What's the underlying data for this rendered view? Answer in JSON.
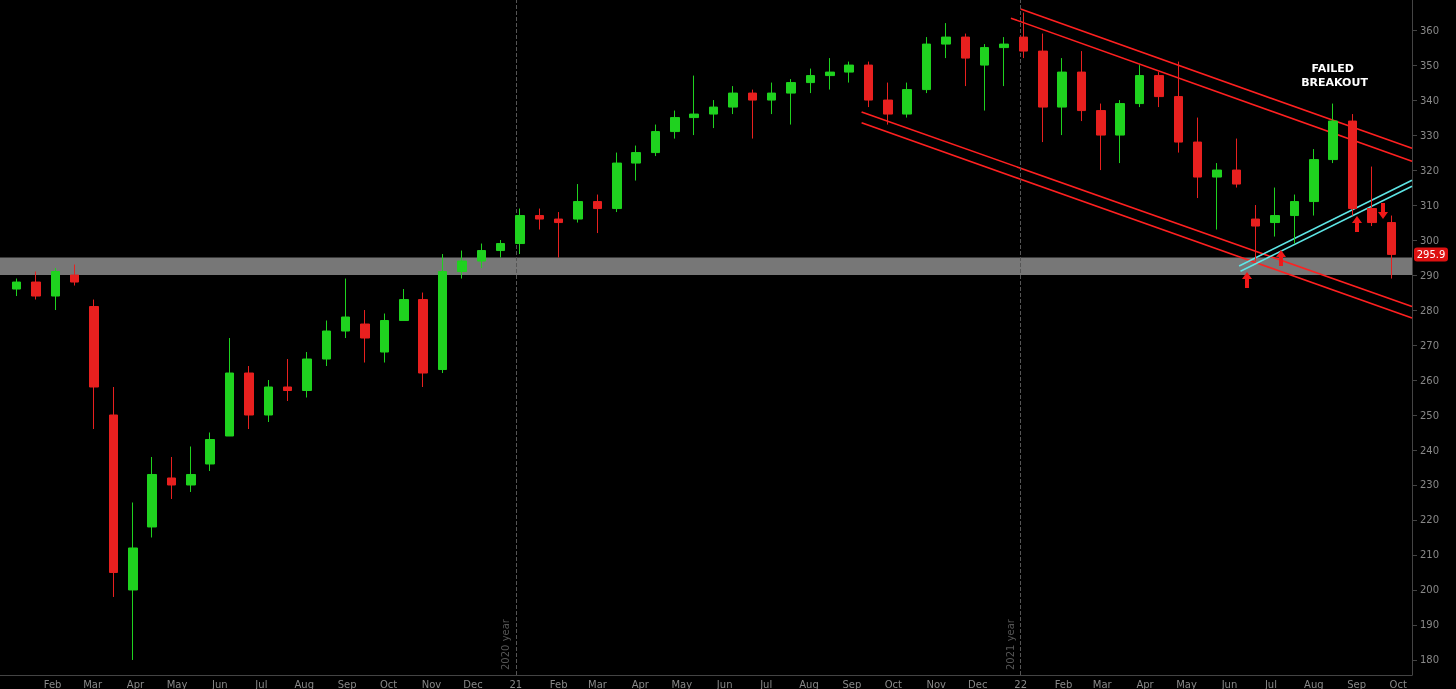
{
  "chart_data": {
    "type": "candlestick",
    "x": [
      "2020-01-06",
      "2020-01-20",
      "2020-02-03",
      "2020-02-17",
      "2020-03-02",
      "2020-03-16",
      "2020-03-30",
      "2020-04-13",
      "2020-04-27",
      "2020-05-11",
      "2020-05-25",
      "2020-06-08",
      "2020-06-22",
      "2020-07-06",
      "2020-07-20",
      "2020-08-03",
      "2020-08-17",
      "2020-08-31",
      "2020-09-14",
      "2020-09-28",
      "2020-10-12",
      "2020-10-26",
      "2020-11-09",
      "2020-11-23",
      "2020-12-07",
      "2020-12-21",
      "2021-01-04",
      "2021-01-18",
      "2021-02-01",
      "2021-02-15",
      "2021-03-01",
      "2021-03-15",
      "2021-03-29",
      "2021-04-12",
      "2021-04-26",
      "2021-05-10",
      "2021-05-24",
      "2021-06-07",
      "2021-06-21",
      "2021-07-05",
      "2021-07-19",
      "2021-08-02",
      "2021-08-16",
      "2021-08-30",
      "2021-09-13",
      "2021-09-27",
      "2021-10-11",
      "2021-10-25",
      "2021-11-08",
      "2021-11-22",
      "2021-12-06",
      "2021-12-20",
      "2022-01-03",
      "2022-01-17",
      "2022-01-31",
      "2022-02-14",
      "2022-02-28",
      "2022-03-14",
      "2022-03-28",
      "2022-04-11",
      "2022-04-25",
      "2022-05-09",
      "2022-05-23",
      "2022-06-06",
      "2022-06-20",
      "2022-07-04",
      "2022-07-18",
      "2022-08-01",
      "2022-08-15",
      "2022-08-29",
      "2022-09-12",
      "2022-09-26"
    ],
    "ohlc": [
      [
        286,
        289,
        284,
        288
      ],
      [
        288,
        291,
        283,
        284
      ],
      [
        284,
        292,
        280,
        291
      ],
      [
        290,
        293,
        287,
        288
      ],
      [
        281,
        283,
        246,
        258
      ],
      [
        250,
        258,
        198,
        205
      ],
      [
        200,
        225,
        180,
        212
      ],
      [
        218,
        238,
        215,
        233
      ],
      [
        232,
        238,
        226,
        230
      ],
      [
        230,
        241,
        228,
        233
      ],
      [
        236,
        245,
        234,
        243
      ],
      [
        244,
        272,
        244,
        262
      ],
      [
        262,
        264,
        246,
        250
      ],
      [
        250,
        260,
        248,
        258
      ],
      [
        258,
        266,
        254,
        257
      ],
      [
        257,
        268,
        255,
        266
      ],
      [
        266,
        277,
        264,
        274
      ],
      [
        274,
        289,
        272,
        278
      ],
      [
        276,
        280,
        265,
        272
      ],
      [
        268,
        279,
        265,
        277
      ],
      [
        277,
        286,
        277,
        283
      ],
      [
        283,
        285,
        258,
        262
      ],
      [
        263,
        296,
        262,
        291
      ],
      [
        291,
        297,
        289,
        294
      ],
      [
        294,
        299,
        292,
        297
      ],
      [
        297,
        300,
        295,
        299
      ],
      [
        299,
        309,
        296,
        307
      ],
      [
        307,
        309,
        303,
        306
      ],
      [
        306,
        308,
        295,
        305
      ],
      [
        306,
        316,
        305,
        311
      ],
      [
        311,
        313,
        302,
        309
      ],
      [
        309,
        325,
        308,
        322
      ],
      [
        322,
        327,
        317,
        325
      ],
      [
        325,
        333,
        324,
        331
      ],
      [
        331,
        337,
        329,
        335
      ],
      [
        335,
        347,
        330,
        336
      ],
      [
        336,
        340,
        332,
        338
      ],
      [
        338,
        344,
        336,
        342
      ],
      [
        342,
        343,
        329,
        340
      ],
      [
        340,
        345,
        336,
        342
      ],
      [
        342,
        346,
        333,
        345
      ],
      [
        345,
        349,
        342,
        347
      ],
      [
        347,
        352,
        343,
        348
      ],
      [
        348,
        351,
        345,
        350
      ],
      [
        350,
        351,
        338,
        340
      ],
      [
        340,
        345,
        333,
        336
      ],
      [
        336,
        345,
        335,
        343
      ],
      [
        343,
        358,
        342,
        356
      ],
      [
        356,
        362,
        352,
        358
      ],
      [
        358,
        359,
        344,
        352
      ],
      [
        350,
        356,
        337,
        355
      ],
      [
        355,
        358,
        344,
        356
      ],
      [
        358,
        365,
        352,
        354
      ],
      [
        354,
        359,
        328,
        338
      ],
      [
        338,
        352,
        330,
        348
      ],
      [
        348,
        354,
        334,
        337
      ],
      [
        337,
        339,
        320,
        330
      ],
      [
        330,
        340,
        322,
        339
      ],
      [
        339,
        350,
        338,
        347
      ],
      [
        347,
        348,
        338,
        341
      ],
      [
        341,
        351,
        325,
        328
      ],
      [
        328,
        335,
        312,
        318
      ],
      [
        318,
        322,
        303,
        320
      ],
      [
        320,
        329,
        315,
        316
      ],
      [
        306,
        310,
        294,
        304
      ],
      [
        305,
        315,
        301,
        307
      ],
      [
        307,
        313,
        299,
        311
      ],
      [
        311,
        326,
        307,
        323
      ],
      [
        323,
        339,
        322,
        334
      ],
      [
        334,
        336,
        307,
        309
      ],
      [
        309,
        321,
        304,
        305
      ],
      [
        305,
        307,
        289,
        295.9
      ]
    ],
    "colors": [
      "#1fd21f",
      "#e8201f",
      "#1fd21f",
      "#e8201f",
      "#e8201f",
      "#e8201f",
      "#1fd21f",
      "#1fd21f",
      "#e8201f",
      "#1fd21f",
      "#1fd21f",
      "#1fd21f",
      "#e8201f",
      "#1fd21f",
      "#e8201f",
      "#1fd21f",
      "#1fd21f",
      "#1fd21f",
      "#e8201f",
      "#1fd21f",
      "#1fd21f",
      "#e8201f",
      "#1fd21f",
      "#1fd21f",
      "#1fd21f",
      "#1fd21f",
      "#1fd21f",
      "#e8201f",
      "#e8201f",
      "#1fd21f",
      "#e8201f",
      "#1fd21f",
      "#1fd21f",
      "#1fd21f",
      "#1fd21f",
      "#1fd21f",
      "#1fd21f",
      "#1fd21f",
      "#e8201f",
      "#1fd21f",
      "#1fd21f",
      "#1fd21f",
      "#1fd21f",
      "#1fd21f",
      "#e8201f",
      "#e8201f",
      "#1fd21f",
      "#1fd21f",
      "#1fd21f",
      "#e8201f",
      "#1fd21f",
      "#1fd21f",
      "#e8201f",
      "#e8201f",
      "#1fd21f",
      "#e8201f",
      "#e8201f",
      "#1fd21f",
      "#1fd21f",
      "#e8201f",
      "#e8201f",
      "#e8201f",
      "#1fd21f",
      "#e8201f",
      "#e8201f",
      "#1fd21f",
      "#1fd21f",
      "#1fd21f",
      "#1fd21f",
      "#e8201f",
      "#e8201f",
      "#e8201f"
    ],
    "series": [
      {
        "type": "line",
        "color": "#ff2020",
        "x": [
          "2022-01-01",
          "2022-10-11"
        ],
        "values": [
          366,
          326.2
        ]
      },
      {
        "type": "line",
        "color": "#ff2020",
        "x": [
          "2021-12-25",
          "2022-10-11"
        ],
        "values": [
          363.4,
          322.5
        ]
      },
      {
        "type": "line",
        "color": "#ff2020",
        "x": [
          "2021-09-08",
          "2022-10-11"
        ],
        "values": [
          336.6,
          281
        ]
      },
      {
        "type": "line",
        "color": "#ff2020",
        "x": [
          "2021-09-08",
          "2022-10-11"
        ],
        "values": [
          333.5,
          277.7
        ]
      },
      {
        "type": "line",
        "color": "#5ee6e6",
        "x": [
          "2022-06-08",
          "2022-10-11"
        ],
        "values": [
          292.6,
          317.1
        ]
      },
      {
        "type": "line",
        "color": "#5ee6e6",
        "x": [
          "2022-06-09",
          "2022-10-11"
        ],
        "values": [
          291.1,
          315.4
        ]
      }
    ],
    "xlim": [
      "2019-12-25",
      "2022-10-11"
    ],
    "xticks": [
      {
        "value": "2020-02-01",
        "label": "Feb"
      },
      {
        "value": "2020-03-01",
        "label": "Mar"
      },
      {
        "value": "2020-04-01",
        "label": "Apr"
      },
      {
        "value": "2020-05-01",
        "label": "May"
      },
      {
        "value": "2020-06-01",
        "label": "Jun"
      },
      {
        "value": "2020-07-01",
        "label": "Jul"
      },
      {
        "value": "2020-08-01",
        "label": "Aug"
      },
      {
        "value": "2020-09-01",
        "label": "Sep"
      },
      {
        "value": "2020-10-01",
        "label": "Oct"
      },
      {
        "value": "2020-11-01",
        "label": "Nov"
      },
      {
        "value": "2020-12-01",
        "label": "Dec"
      },
      {
        "value": "2021-01-01",
        "label": "21"
      },
      {
        "value": "2021-02-01",
        "label": "Feb"
      },
      {
        "value": "2021-03-01",
        "label": "Mar"
      },
      {
        "value": "2021-04-01",
        "label": "Apr"
      },
      {
        "value": "2021-05-01",
        "label": "May"
      },
      {
        "value": "2021-06-01",
        "label": "Jun"
      },
      {
        "value": "2021-07-01",
        "label": "Jul"
      },
      {
        "value": "2021-08-01",
        "label": "Aug"
      },
      {
        "value": "2021-09-01",
        "label": "Sep"
      },
      {
        "value": "2021-10-01",
        "label": "Oct"
      },
      {
        "value": "2021-11-01",
        "label": "Nov"
      },
      {
        "value": "2021-12-01",
        "label": "Dec"
      },
      {
        "value": "2022-01-01",
        "label": "22"
      },
      {
        "value": "2022-02-01",
        "label": "Feb"
      },
      {
        "value": "2022-03-01",
        "label": "Mar"
      },
      {
        "value": "2022-04-01",
        "label": "Apr"
      },
      {
        "value": "2022-05-01",
        "label": "May"
      },
      {
        "value": "2022-06-01",
        "label": "Jun"
      },
      {
        "value": "2022-07-01",
        "label": "Jul"
      },
      {
        "value": "2022-08-01",
        "label": "Aug"
      },
      {
        "value": "2022-09-01",
        "label": "Sep"
      },
      {
        "value": "2022-10-01",
        "label": "Oct"
      }
    ],
    "ylim": [
      175.7,
      368.6
    ],
    "yticks": [
      180,
      190,
      200,
      210,
      220,
      230,
      240,
      250,
      260,
      270,
      280,
      290,
      300,
      310,
      320,
      330,
      340,
      350,
      360
    ],
    "bands": [
      {
        "axis": "y",
        "from": 290,
        "to": 295,
        "color": "#777777"
      }
    ],
    "ref_lines": [
      {
        "axis": "x",
        "value": "2021-01-01",
        "label": "2020 year",
        "color": "#555555",
        "line_style": "dashed"
      },
      {
        "axis": "x",
        "value": "2022-01-01",
        "label": "2021 year",
        "color": "#555555",
        "line_style": "dashed"
      }
    ],
    "annotations": [
      {
        "text": "FAILED BREAKOUT",
        "x": "2022-08-16",
        "y": 339
      },
      {
        "text": "295.9",
        "y": 295.9
      }
    ],
    "grid": false,
    "marker": "none"
  }
}
